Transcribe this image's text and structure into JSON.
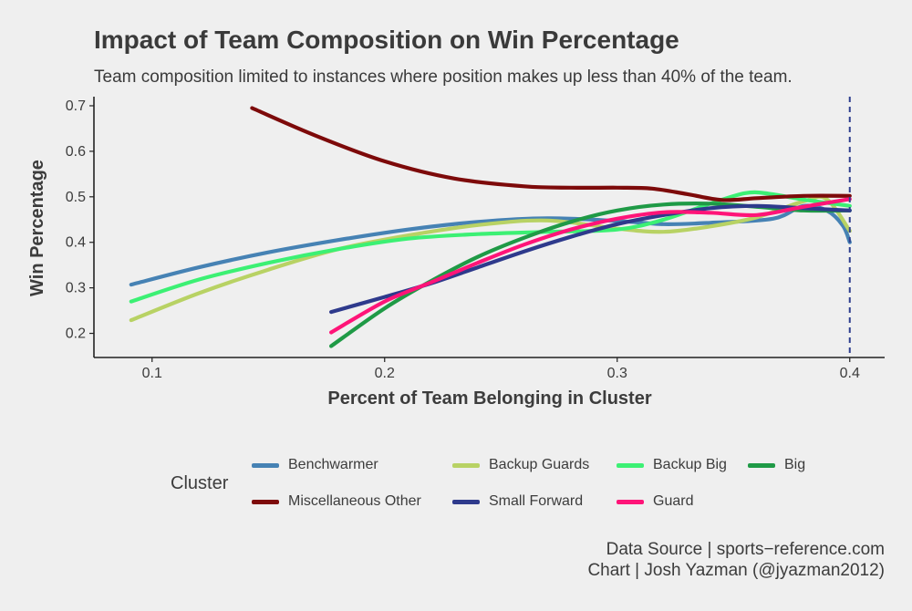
{
  "title": "Impact of Team Composition on Win Percentage",
  "subtitle": "Team composition limited to instances where position makes up less than 40% of the team.",
  "caption": {
    "line1": "Data Source | sports−reference.com",
    "line2": "Chart | Josh Yazman (@jyazman2012)"
  },
  "legend": {
    "title": "Cluster",
    "placement": "bottom"
  },
  "chart_data": {
    "type": "line",
    "xlabel": "Percent of Team Belonging in Cluster",
    "ylabel": "Win Percentage",
    "xlim": [
      0.075,
      0.415
    ],
    "ylim": [
      0.147,
      0.72
    ],
    "xticks": [
      0.1,
      0.2,
      0.3,
      0.4
    ],
    "xtick_labels": [
      "0.1",
      "0.2",
      "0.3",
      "0.4"
    ],
    "yticks": [
      0.2,
      0.3,
      0.4,
      0.5,
      0.6,
      0.7
    ],
    "ytick_labels": [
      "0.2",
      "0.3",
      "0.4",
      "0.5",
      "0.6",
      "0.7"
    ],
    "grid": false,
    "reference_line": {
      "x": 0.4,
      "style": "dashed",
      "color": "#2e3f8f"
    },
    "series": [
      {
        "name": "Benchwarmer",
        "color": "#4682b4",
        "x": [
          0.091,
          0.12,
          0.15,
          0.18,
          0.21,
          0.24,
          0.27,
          0.3,
          0.32,
          0.34,
          0.367,
          0.38,
          0.39,
          0.397,
          0.4
        ],
        "y": [
          0.307,
          0.345,
          0.378,
          0.405,
          0.428,
          0.445,
          0.453,
          0.447,
          0.44,
          0.443,
          0.452,
          0.48,
          0.47,
          0.437,
          0.4
        ]
      },
      {
        "name": "Backup Guards",
        "color": "#b8d264",
        "x": [
          0.091,
          0.12,
          0.15,
          0.18,
          0.21,
          0.24,
          0.27,
          0.3,
          0.32,
          0.34,
          0.36,
          0.38,
          0.39,
          0.4
        ],
        "y": [
          0.229,
          0.288,
          0.34,
          0.385,
          0.415,
          0.438,
          0.448,
          0.43,
          0.423,
          0.435,
          0.455,
          0.49,
          0.495,
          0.425
        ]
      },
      {
        "name": "Backup Big",
        "color": "#3cf074",
        "x": [
          0.091,
          0.12,
          0.15,
          0.18,
          0.21,
          0.24,
          0.27,
          0.3,
          0.32,
          0.34,
          0.355,
          0.365,
          0.38,
          0.4
        ],
        "y": [
          0.27,
          0.318,
          0.355,
          0.385,
          0.408,
          0.418,
          0.423,
          0.428,
          0.45,
          0.485,
          0.508,
          0.507,
          0.494,
          0.48
        ]
      },
      {
        "name": "Big",
        "color": "#1f9a46",
        "x": [
          0.177,
          0.2,
          0.22,
          0.24,
          0.26,
          0.28,
          0.3,
          0.32,
          0.34,
          0.36,
          0.38,
          0.4
        ],
        "y": [
          0.172,
          0.255,
          0.315,
          0.368,
          0.41,
          0.445,
          0.47,
          0.483,
          0.485,
          0.478,
          0.47,
          0.47
        ]
      },
      {
        "name": "Miscellaneous Other",
        "color": "#7d0a0a",
        "x": [
          0.143,
          0.17,
          0.2,
          0.23,
          0.26,
          0.28,
          0.3,
          0.315,
          0.33,
          0.345,
          0.36,
          0.38,
          0.4
        ],
        "y": [
          0.695,
          0.635,
          0.578,
          0.54,
          0.523,
          0.52,
          0.52,
          0.518,
          0.506,
          0.493,
          0.497,
          0.502,
          0.502
        ]
      },
      {
        "name": "Small Forward",
        "color": "#2e3a8c",
        "x": [
          0.177,
          0.2,
          0.22,
          0.24,
          0.26,
          0.28,
          0.3,
          0.32,
          0.34,
          0.36,
          0.38,
          0.4
        ],
        "y": [
          0.247,
          0.28,
          0.31,
          0.345,
          0.38,
          0.412,
          0.44,
          0.46,
          0.475,
          0.48,
          0.475,
          0.47
        ]
      },
      {
        "name": "Guard",
        "color": "#ff1478",
        "x": [
          0.177,
          0.2,
          0.22,
          0.24,
          0.26,
          0.28,
          0.3,
          0.32,
          0.34,
          0.36,
          0.38,
          0.4
        ],
        "y": [
          0.202,
          0.27,
          0.312,
          0.355,
          0.395,
          0.428,
          0.452,
          0.466,
          0.465,
          0.46,
          0.478,
          0.495
        ]
      }
    ]
  }
}
